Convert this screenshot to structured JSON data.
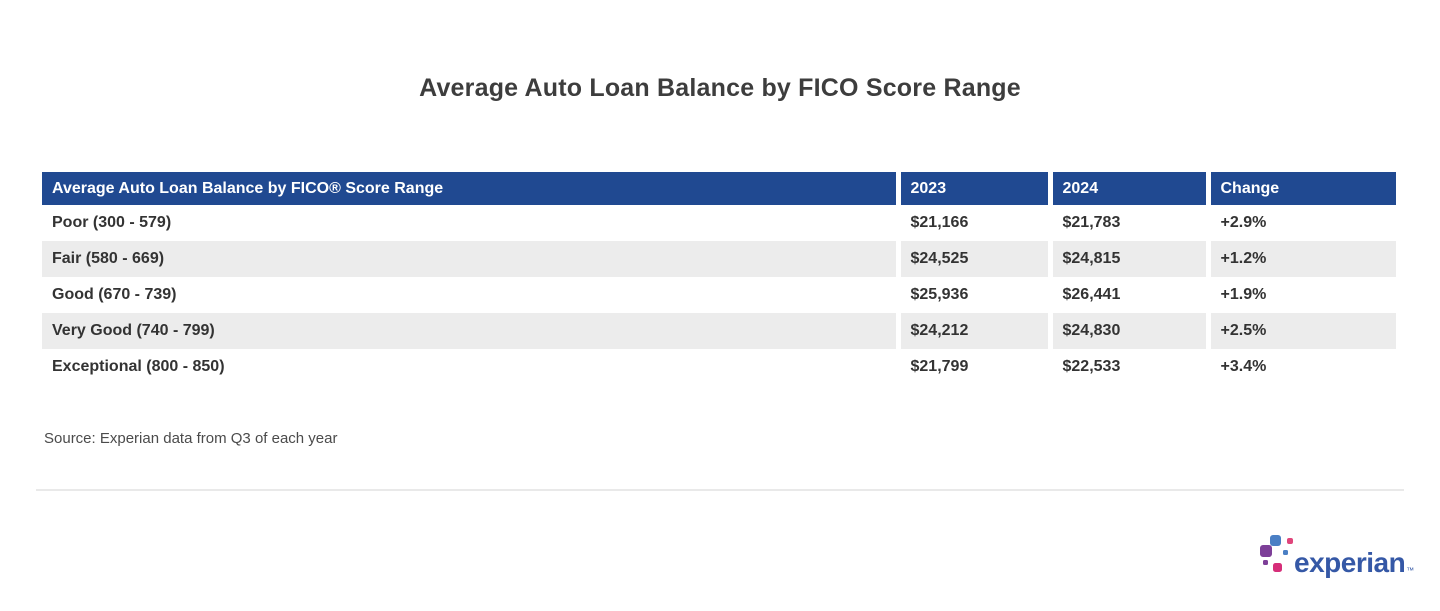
{
  "chart_data": {
    "type": "table",
    "title": "Average Auto Loan Balance by FICO Score Range",
    "header": [
      "Average Auto Loan Balance by FICO® Score Range",
      "2023",
      "2024",
      "Change"
    ],
    "rows": [
      [
        "Poor (300 - 579)",
        "$21,166",
        "$21,783",
        "+2.9%"
      ],
      [
        "Fair (580 - 669)",
        "$24,525",
        "$24,815",
        "+1.2%"
      ],
      [
        "Good (670 - 739)",
        "$25,936",
        "$26,441",
        "+1.9%"
      ],
      [
        "Very Good (740 - 799)",
        "$24,212",
        "$24,830",
        "+2.5%"
      ],
      [
        "Exceptional (800 - 850)",
        "$21,799",
        "$22,533",
        "+3.4%"
      ]
    ],
    "source": "Source: Experian data from Q3 of each year",
    "layout": {
      "alternating_row_shading": true,
      "header_background": "#204991",
      "header_text_color": "#ffffff",
      "alt_row_background": "#ececec"
    }
  },
  "logo": {
    "text": "experian",
    "trademark": "™"
  },
  "colors": {
    "header_bg": "#204991",
    "row_alt_bg": "#ececec",
    "title_text": "#3d3d3d",
    "body_text": "#333333",
    "logo_blue": "#3558a6",
    "logo_steel_blue": "#4a7fc4",
    "logo_purple": "#7d3f98",
    "logo_magenta": "#d62e79",
    "logo_pink": "#e0457b"
  }
}
